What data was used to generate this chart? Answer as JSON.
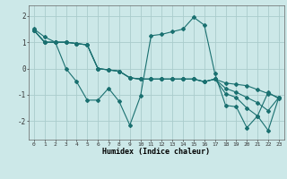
{
  "xlabel": "Humidex (Indice chaleur)",
  "background_color": "#cce8e8",
  "grid_color": "#aacccc",
  "line_color": "#1a7070",
  "xlim": [
    -0.5,
    23.5
  ],
  "ylim": [
    -2.7,
    2.4
  ],
  "yticks": [
    -2,
    -1,
    0,
    1,
    2
  ],
  "xticks": [
    0,
    1,
    2,
    3,
    4,
    5,
    6,
    7,
    8,
    9,
    10,
    11,
    12,
    13,
    14,
    15,
    16,
    17,
    18,
    19,
    20,
    21,
    22,
    23
  ],
  "lines": [
    [
      1.5,
      1.2,
      1.0,
      0.0,
      -0.5,
      -1.2,
      -1.2,
      -0.75,
      -1.25,
      -2.15,
      -1.05,
      1.25,
      1.3,
      1.4,
      1.5,
      1.95,
      1.65,
      -0.2,
      -1.4,
      -1.45,
      -2.25,
      -1.8,
      -0.9,
      -1.15
    ],
    [
      1.45,
      1.0,
      1.0,
      1.0,
      0.95,
      0.9,
      0.0,
      -0.05,
      -0.1,
      -0.35,
      -0.4,
      -0.4,
      -0.4,
      -0.4,
      -0.4,
      -0.4,
      -0.5,
      -0.4,
      -0.55,
      -0.6,
      -0.65,
      -0.8,
      -0.95,
      -1.1
    ],
    [
      1.45,
      1.0,
      1.0,
      1.0,
      0.95,
      0.9,
      0.0,
      -0.05,
      -0.1,
      -0.35,
      -0.4,
      -0.4,
      -0.4,
      -0.4,
      -0.4,
      -0.4,
      -0.5,
      -0.4,
      -0.75,
      -0.9,
      -1.1,
      -1.3,
      -1.6,
      -1.1
    ],
    [
      1.45,
      1.0,
      1.0,
      1.0,
      0.95,
      0.9,
      0.0,
      -0.05,
      -0.1,
      -0.35,
      -0.4,
      -0.4,
      -0.4,
      -0.4,
      -0.4,
      -0.4,
      -0.5,
      -0.4,
      -0.95,
      -1.1,
      -1.5,
      -1.8,
      -2.35,
      -1.1
    ]
  ]
}
